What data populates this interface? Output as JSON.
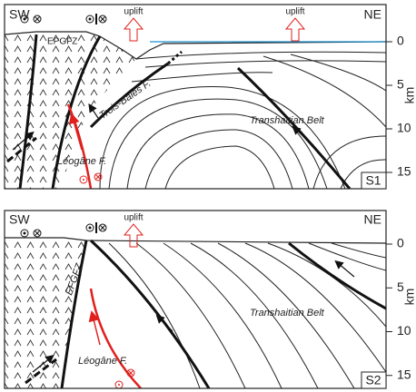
{
  "panels": [
    {
      "left": "SW",
      "right": "NE",
      "uplift": [
        "uplift",
        "uplift"
      ],
      "zone": "EPGFZ",
      "fault_1": "Trois-Baies F.",
      "belt": "Transhaitian Belt",
      "fault_2": "Léogâne F.",
      "stage": "S1",
      "depth_unit": "km",
      "depth_ticks": [
        0,
        5,
        10,
        15
      ]
    },
    {
      "left": "SW",
      "right": "NE",
      "uplift": [
        "uplift"
      ],
      "zone": "EFGFZ",
      "belt": "Transhaitian Belt",
      "fault_2": "Léogâne F.",
      "stage": "S2",
      "depth_unit": "km",
      "depth_ticks": [
        0,
        5,
        10,
        15
      ]
    }
  ]
}
